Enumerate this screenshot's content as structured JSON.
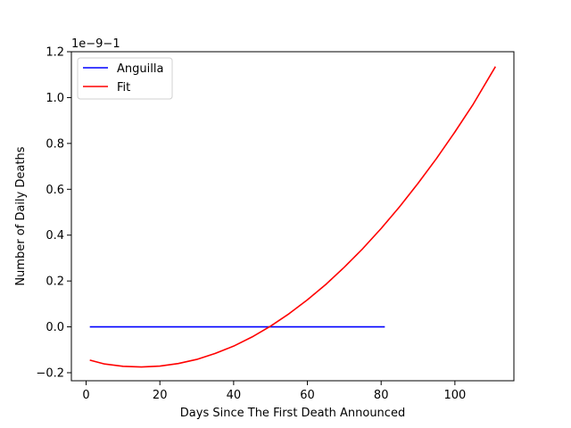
{
  "chart_data": {
    "type": "line",
    "xlabel": "Days Since The First Death Announced",
    "ylabel": "Number of Daily Deaths",
    "offset_text": "1e−9−1",
    "xlim": [
      -4,
      116
    ],
    "ylim": [
      -0.235,
      1.2
    ],
    "x_ticks": [
      0,
      20,
      40,
      60,
      80,
      100
    ],
    "x_tick_labels": [
      "0",
      "20",
      "40",
      "60",
      "80",
      "100"
    ],
    "y_ticks": [
      -0.2,
      0.0,
      0.2,
      0.4,
      0.6,
      0.8,
      1.0,
      1.2
    ],
    "y_tick_labels": [
      "−0.2",
      "0.0",
      "0.2",
      "0.4",
      "0.6",
      "0.8",
      "1.0",
      "1.2"
    ],
    "grid": false,
    "legend_position": "upper-left",
    "series": [
      {
        "name": "Anguilla",
        "color": "#0000ff",
        "x": [
          1,
          81
        ],
        "y": [
          0.0,
          0.0
        ]
      },
      {
        "name": "Fit",
        "color": "#ff0000",
        "x": [
          1,
          5,
          10,
          15,
          20,
          25,
          30,
          35,
          40,
          45,
          50,
          55,
          60,
          65,
          70,
          75,
          80,
          85,
          90,
          95,
          100,
          105,
          111
        ],
        "y": [
          -0.145,
          -0.162,
          -0.172,
          -0.175,
          -0.171,
          -0.16,
          -0.142,
          -0.116,
          -0.084,
          -0.044,
          0.003,
          0.057,
          0.118,
          0.185,
          0.26,
          0.341,
          0.429,
          0.524,
          0.626,
          0.734,
          0.85,
          0.972,
          1.135
        ]
      }
    ]
  }
}
